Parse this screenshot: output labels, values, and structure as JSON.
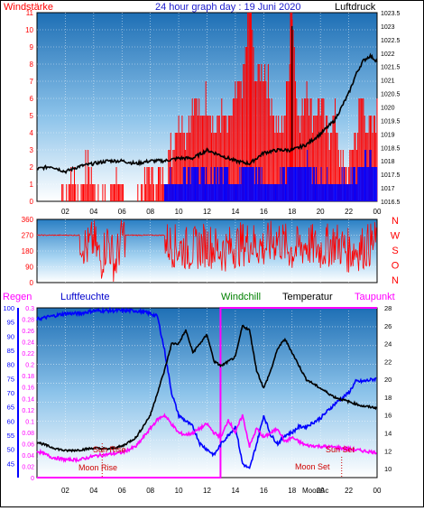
{
  "title": "24 hour graph day : 19 Juni 2020",
  "top_panel": {
    "left_label": "Windstärke",
    "right_label": "Luftdruck",
    "left_ticks": [
      "11",
      "10",
      "9",
      "8",
      "7",
      "6",
      "5",
      "4",
      "3",
      "2",
      "1",
      "0"
    ],
    "right_ticks": [
      "1023.5",
      "1023",
      "1022.5",
      "1022",
      "1021.5",
      "1021",
      "1020.5",
      "1020",
      "1019.5",
      "1019",
      "1018.5",
      "1018",
      "1017.5",
      "1017",
      "1016.5"
    ],
    "x_ticks": [
      "02",
      "04",
      "06",
      "08",
      "10",
      "12",
      "14",
      "16",
      "18",
      "20",
      "22",
      "00"
    ]
  },
  "mid_panel": {
    "left_ticks": [
      "360",
      "270",
      "180",
      "90",
      "0"
    ],
    "right_letters": [
      "N",
      "W",
      "S",
      "O",
      "N"
    ]
  },
  "bottom_panel": {
    "labels": {
      "regen": "Regen",
      "luftfeuchte": "Luftfeuchte",
      "windchill": "Windchill",
      "temperatur": "Temperatur",
      "taupunkt": "Taupunkt"
    },
    "hum_ticks": [
      "100",
      "95",
      "90",
      "85",
      "80",
      "75",
      "70",
      "65",
      "60",
      "55",
      "50",
      "45"
    ],
    "rain_ticks": [
      "0.3",
      "0.28",
      "0.26",
      "0.24",
      "0.22",
      "0.2",
      "0.18",
      "0.16",
      "0.14",
      "0.12",
      "0.1",
      "0.08",
      "0.06",
      "0.04",
      "0.02",
      "0"
    ],
    "temp_ticks": [
      "28",
      "26",
      "24",
      "22",
      "20",
      "18",
      "16",
      "14",
      "12",
      "10"
    ],
    "annotations": {
      "sun_rise": "Sun Rise",
      "moon_rise": "Moon Rise",
      "moon_set": "Moon Set",
      "sun_set": "Sun Set",
      "moon_ac": "MoonAc"
    },
    "x_ticks": [
      "02",
      "04",
      "06",
      "08",
      "10",
      "12",
      "14",
      "16",
      "18",
      "20",
      "22",
      "00"
    ]
  },
  "colors": {
    "wind": "#ff0000",
    "gust_blue": "#0000ff",
    "pressure": "#000000",
    "direction": "#ff0000",
    "humidity": "#0000ff",
    "temperature": "#000000",
    "windchill": "#000000",
    "dewpoint": "#ff00ff",
    "regen": "#ff00ff",
    "axis_red": "#ff0000",
    "axis_blue": "#0000ff",
    "axis_magenta": "#ff00ff",
    "windchill_label": "#008000"
  },
  "chart_data": [
    {
      "type": "line",
      "title": "24 hour graph day : 19 Juni 2020",
      "xlabel": "",
      "x_unit": "hour",
      "xlim": [
        0,
        24
      ],
      "series": [
        {
          "name": "Luftdruck",
          "axis": "right",
          "ylim": [
            1016.5,
            1023.5
          ],
          "x": [
            0,
            1,
            2,
            3,
            4,
            5,
            6,
            7,
            8,
            9,
            10,
            11,
            12,
            13,
            14,
            15,
            16,
            17,
            18,
            19,
            20,
            21,
            22,
            22.5,
            23,
            23.5,
            24
          ],
          "values": [
            1017.7,
            1017.8,
            1017.6,
            1017.8,
            1017.9,
            1018.0,
            1018.0,
            1017.9,
            1018.0,
            1018.0,
            1018.1,
            1018.1,
            1018.4,
            1018.2,
            1018.0,
            1017.9,
            1018.3,
            1018.4,
            1018.4,
            1018.6,
            1019.0,
            1019.5,
            1020.5,
            1021.2,
            1021.7,
            1021.9,
            1021.7
          ]
        },
        {
          "name": "Windstärke",
          "axis": "left",
          "ylim": [
            0,
            11
          ],
          "x": [
            0,
            1,
            2,
            2.5,
            3,
            3.5,
            4,
            5,
            5.5,
            6,
            7,
            8,
            8.5,
            9,
            9.5,
            10,
            10.5,
            11,
            11.5,
            12,
            12.5,
            13,
            13.5,
            14,
            14.5,
            15,
            15.5,
            16,
            16.5,
            17,
            17.5,
            18,
            18.5,
            19,
            19.5,
            20,
            20.5,
            21,
            21.5,
            22,
            22.5,
            23,
            23.5,
            24
          ],
          "values": [
            0,
            0,
            0,
            2,
            0,
            2,
            1,
            0,
            2,
            0,
            0,
            2,
            1,
            2,
            3,
            5,
            4,
            6,
            5,
            6,
            4,
            5,
            4,
            6,
            7,
            11,
            7,
            8,
            6,
            4,
            5,
            11,
            4,
            7,
            5,
            6,
            4,
            5,
            2,
            2,
            4,
            6,
            4,
            5
          ]
        },
        {
          "name": "Wind (blue)",
          "axis": "left",
          "ylim": [
            0,
            11
          ],
          "x": [
            9,
            10,
            11,
            12,
            13,
            14,
            15,
            16,
            17,
            18,
            19,
            20,
            21,
            22,
            23,
            24
          ],
          "values": [
            1,
            1,
            2,
            1,
            2,
            1,
            2,
            1,
            1,
            2,
            2,
            1,
            1,
            1,
            2,
            2
          ]
        }
      ]
    },
    {
      "type": "scatter",
      "title": "",
      "xlabel": "",
      "x_unit": "hour",
      "xlim": [
        0,
        24
      ],
      "ylim": [
        0,
        360
      ],
      "series": [
        {
          "name": "",
          "x": [
            0,
            1,
            2,
            3,
            3.5,
            4,
            4.5,
            5,
            5.5,
            6,
            7,
            8,
            9,
            10,
            11,
            12,
            13,
            14,
            15,
            16,
            17,
            18,
            19,
            20,
            21,
            22,
            23,
            24
          ],
          "values": [
            270,
            270,
            270,
            270,
            190,
            240,
            120,
            250,
            100,
            270,
            270,
            270,
            230,
            200,
            190,
            220,
            180,
            210,
            230,
            200,
            250,
            180,
            220,
            190,
            230,
            180,
            200,
            230
          ]
        }
      ]
    },
    {
      "type": "line",
      "title": "",
      "xlabel": "",
      "x_unit": "hour",
      "xlim": [
        0,
        24
      ],
      "series": [
        {
          "name": "Luftfeuchte",
          "axis": "humidity",
          "ylim": [
            40,
            100
          ],
          "x": [
            0,
            1,
            2,
            3,
            4,
            5,
            6,
            7,
            8,
            8.5,
            9,
            9.5,
            10,
            10.5,
            11,
            11.5,
            12,
            12.5,
            13,
            13.5,
            14,
            14.5,
            15,
            15.5,
            16,
            16.5,
            17,
            17.5,
            18,
            18.5,
            19,
            20,
            21,
            22,
            22.5,
            23,
            24
          ],
          "values": [
            96,
            97,
            98,
            98,
            99,
            99,
            99,
            99,
            98,
            97,
            85,
            70,
            62,
            60,
            58,
            52,
            50,
            48,
            52,
            55,
            58,
            45,
            43,
            52,
            62,
            55,
            52,
            55,
            56,
            58,
            58,
            61,
            66,
            70,
            74,
            74,
            75
          ]
        },
        {
          "name": "Temperatur",
          "axis": "temperature",
          "ylim": [
            9,
            28
          ],
          "x": [
            0,
            1,
            2,
            3,
            4,
            5,
            6,
            7,
            8,
            8.5,
            9,
            9.5,
            10,
            10.5,
            11,
            11.5,
            12,
            12.5,
            13,
            13.5,
            14,
            14.5,
            15,
            15.5,
            16,
            16.5,
            17,
            17.5,
            18,
            18.5,
            19,
            20,
            21,
            22,
            23,
            24
          ],
          "values": [
            13,
            12.4,
            12,
            12.1,
            12.3,
            12.2,
            12.5,
            13.5,
            16,
            18.5,
            21,
            24,
            24,
            25.5,
            23,
            24,
            25,
            22,
            21.5,
            22,
            22.5,
            26,
            25.5,
            21,
            19,
            21,
            23.5,
            24.5,
            23,
            21.5,
            20,
            19,
            18,
            17.5,
            17,
            16.8
          ]
        },
        {
          "name": "Taupunkt",
          "axis": "temperature",
          "ylim": [
            9,
            28
          ],
          "x": [
            0,
            1,
            2,
            3,
            4,
            5,
            6,
            7,
            8,
            8.5,
            9,
            9.5,
            10,
            10.5,
            11,
            11.5,
            12,
            12.5,
            13,
            13.5,
            14,
            14.5,
            15,
            15.5,
            16,
            16.5,
            17,
            17.5,
            18,
            18.5,
            19,
            20,
            21,
            22,
            23,
            24
          ],
          "values": [
            12,
            11.3,
            11,
            11,
            11.4,
            11.6,
            11.8,
            12.5,
            14.5,
            15.5,
            16,
            15,
            14,
            13.8,
            14,
            14.5,
            15,
            14,
            13.5,
            15.5,
            14,
            16,
            12.5,
            14.5,
            13.5,
            14,
            14.5,
            13,
            13.5,
            13,
            12.6,
            12.5,
            12.4,
            12.2,
            12,
            11.8
          ]
        },
        {
          "name": "Regen",
          "axis": "rain",
          "ylim": [
            0,
            0.3
          ],
          "x": [
            0,
            12.9,
            13,
            24
          ],
          "values": [
            0,
            0,
            0.3,
            0.3
          ]
        }
      ]
    }
  ]
}
